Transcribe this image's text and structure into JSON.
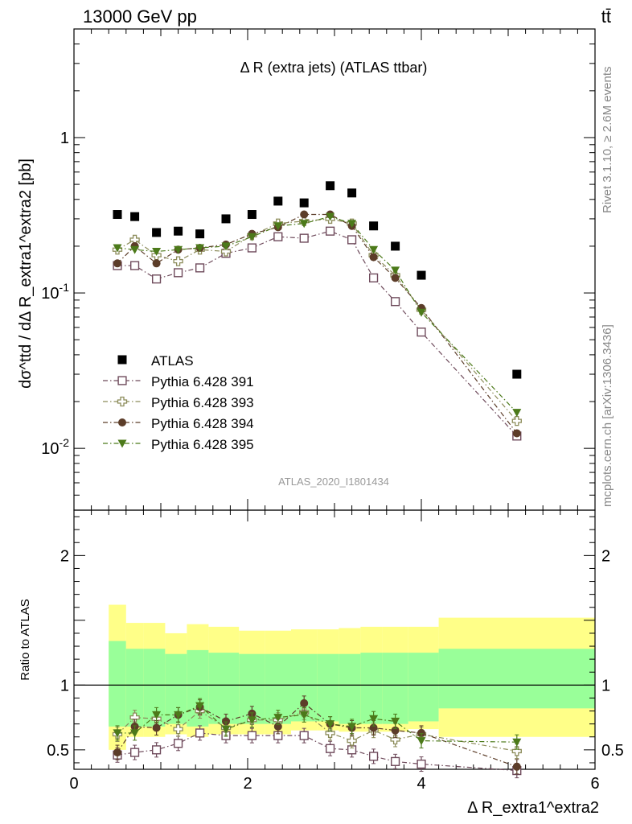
{
  "header": {
    "left": "13000 GeV pp",
    "right": "tt̄"
  },
  "side_labels": {
    "top": "Rivet 3.1.10, ≥ 2.6M events",
    "bottom": "mcplots.cern.ch [arXiv:1306.3436]"
  },
  "chart_data": [
    {
      "type": "scatter",
      "title": "Δ R (extra jets) (ATLAS ttbar)",
      "analysis_label": "ATLAS_2020_I1801434",
      "ylabel": "dσ^ttd / dΔ R_extra1^extra2 [pb]",
      "yscale": "log",
      "ylim": [
        0.004,
        5
      ],
      "xlim": [
        0,
        6
      ],
      "ytick_labels": [
        "10^-2",
        "10^-1",
        "1"
      ],
      "legend": {
        "placement": "lower-left"
      },
      "x": [
        0.5,
        0.7,
        0.95,
        1.2,
        1.45,
        1.75,
        2.05,
        2.35,
        2.65,
        2.95,
        3.2,
        3.45,
        3.7,
        4.0,
        5.1
      ],
      "series": [
        {
          "name": "ATLAS",
          "marker": "filled-square",
          "color": "#000000",
          "values": [
            0.32,
            0.31,
            0.245,
            0.25,
            0.24,
            0.3,
            0.32,
            0.39,
            0.38,
            0.49,
            0.44,
            0.27,
            0.2,
            0.13,
            0.03
          ]
        },
        {
          "name": "Pythia 6.428 391",
          "marker": "open-square",
          "color": "#6e4a5b",
          "values": [
            0.15,
            0.15,
            0.123,
            0.135,
            0.145,
            0.18,
            0.195,
            0.23,
            0.225,
            0.25,
            0.22,
            0.125,
            0.088,
            0.056,
            0.012
          ]
        },
        {
          "name": "Pythia 6.428 393",
          "marker": "open-cross",
          "color": "#8c8c5a",
          "values": [
            0.19,
            0.22,
            0.175,
            0.16,
            0.19,
            0.185,
            0.235,
            0.28,
            0.29,
            0.3,
            0.28,
            0.175,
            0.13,
            0.078,
            0.015
          ]
        },
        {
          "name": "Pythia 6.428 394",
          "marker": "filled-circle",
          "color": "#5c3d29",
          "values": [
            0.155,
            0.2,
            0.155,
            0.19,
            0.195,
            0.205,
            0.24,
            0.265,
            0.32,
            0.32,
            0.27,
            0.17,
            0.125,
            0.08,
            0.0125
          ]
        },
        {
          "name": "Pythia 6.428 395",
          "marker": "filled-triangle-down",
          "color": "#4c7a1a",
          "values": [
            0.195,
            0.19,
            0.185,
            0.19,
            0.195,
            0.2,
            0.23,
            0.27,
            0.28,
            0.31,
            0.28,
            0.19,
            0.14,
            0.075,
            0.017
          ]
        }
      ]
    },
    {
      "type": "scatter",
      "title": "",
      "ylabel": "Ratio to ATLAS",
      "xlabel": "Δ R_extra1^extra2",
      "yscale": "linear",
      "ylim": [
        0.35,
        2.35
      ],
      "xlim": [
        0,
        6
      ],
      "xticks": [
        0,
        2,
        4,
        6
      ],
      "yticks": [
        0.5,
        1,
        2
      ],
      "band_edges": [
        0.4,
        0.6,
        0.8,
        1.05,
        1.3,
        1.55,
        1.9,
        2.2,
        2.5,
        2.8,
        3.05,
        3.3,
        3.55,
        3.85,
        4.2,
        6.0
      ],
      "band_green": [
        [
          0.68,
          1.34
        ],
        [
          0.68,
          1.28
        ],
        [
          0.68,
          1.28
        ],
        [
          0.7,
          1.24
        ],
        [
          0.68,
          1.27
        ],
        [
          0.7,
          1.25
        ],
        [
          0.7,
          1.24
        ],
        [
          0.7,
          1.24
        ],
        [
          0.72,
          1.24
        ],
        [
          0.72,
          1.24
        ],
        [
          0.7,
          1.24
        ],
        [
          0.7,
          1.25
        ],
        [
          0.7,
          1.25
        ],
        [
          0.72,
          1.25
        ],
        [
          0.82,
          1.28
        ]
      ],
      "band_yellow": [
        [
          0.5,
          1.62
        ],
        [
          0.6,
          1.48
        ],
        [
          0.6,
          1.48
        ],
        [
          0.62,
          1.4
        ],
        [
          0.6,
          1.47
        ],
        [
          0.62,
          1.45
        ],
        [
          0.62,
          1.42
        ],
        [
          0.62,
          1.42
        ],
        [
          0.65,
          1.43
        ],
        [
          0.65,
          1.43
        ],
        [
          0.64,
          1.44
        ],
        [
          0.64,
          1.45
        ],
        [
          0.64,
          1.45
        ],
        [
          0.66,
          1.45
        ],
        [
          0.6,
          1.52
        ]
      ],
      "x": [
        0.5,
        0.7,
        0.95,
        1.2,
        1.45,
        1.75,
        2.05,
        2.35,
        2.65,
        2.95,
        3.2,
        3.45,
        3.7,
        4.0,
        5.1
      ],
      "series": [
        {
          "name": "Pythia 6.428 391",
          "marker": "open-square",
          "color": "#6e4a5b",
          "values": [
            0.46,
            0.48,
            0.5,
            0.55,
            0.63,
            0.61,
            0.61,
            0.61,
            0.61,
            0.51,
            0.5,
            0.45,
            0.41,
            0.39,
            0.34
          ]
        },
        {
          "name": "Pythia 6.428 393",
          "marker": "open-cross",
          "color": "#8c8c5a",
          "values": [
            0.62,
            0.75,
            0.74,
            0.66,
            0.8,
            0.67,
            0.73,
            0.73,
            0.79,
            0.63,
            0.57,
            0.65,
            0.58,
            0.62,
            0.49
          ]
        },
        {
          "name": "Pythia 6.428 394",
          "marker": "filled-circle",
          "color": "#5c3d29",
          "values": [
            0.48,
            0.68,
            0.67,
            0.77,
            0.83,
            0.72,
            0.78,
            0.68,
            0.86,
            0.7,
            0.67,
            0.67,
            0.65,
            0.63,
            0.37
          ]
        },
        {
          "name": "Pythia 6.428 395",
          "marker": "filled-triangle-down",
          "color": "#4c7a1a",
          "values": [
            0.63,
            0.63,
            0.77,
            0.77,
            0.84,
            0.66,
            0.73,
            0.75,
            0.77,
            0.7,
            0.68,
            0.74,
            0.72,
            0.57,
            0.56
          ]
        }
      ]
    }
  ]
}
